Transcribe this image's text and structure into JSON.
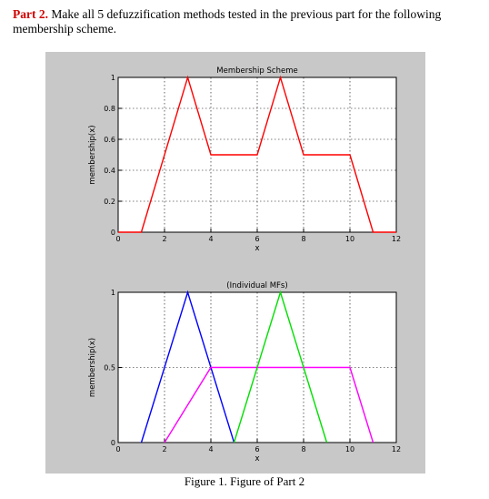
{
  "heading": {
    "part_label": "Part 2.",
    "text": " Make all 5 defuzzification methods tested in the previous part for the following membership scheme."
  },
  "caption": "Figure 1. Figure of Part 2",
  "colors": {
    "figure_bg": "#c8c8c8",
    "red": "#ff0000",
    "blue": "#0000ff",
    "green": "#00e000",
    "magenta": "#ff00ff"
  },
  "chart_data": [
    {
      "type": "line",
      "title": "Membership Scheme",
      "xlabel": "x",
      "ylabel": "membership(x)",
      "xlim": [
        0,
        12
      ],
      "ylim": [
        0,
        1
      ],
      "xticks": [
        "0",
        "2",
        "4",
        "6",
        "8",
        "10",
        "12"
      ],
      "yticks": [
        "0",
        "0.2",
        "0.4",
        "0.6",
        "0.8",
        "1"
      ],
      "grid": true,
      "series": [
        {
          "color": "#ff0000",
          "x": [
            0,
            1,
            3,
            4,
            6,
            7,
            8,
            10,
            11,
            12
          ],
          "y": [
            0,
            0,
            1,
            0.5,
            0.5,
            1,
            0.5,
            0.5,
            0,
            0
          ]
        }
      ]
    },
    {
      "type": "line",
      "title": "(Individual MFs)",
      "xlabel": "x",
      "ylabel": "membership(x)",
      "xlim": [
        0,
        12
      ],
      "ylim": [
        0,
        1
      ],
      "xticks": [
        "0",
        "2",
        "4",
        "6",
        "8",
        "10",
        "12"
      ],
      "yticks": [
        "0",
        "0.5",
        "1"
      ],
      "grid": true,
      "series": [
        {
          "color": "#0000ff",
          "x": [
            1,
            3,
            5
          ],
          "y": [
            0,
            1,
            0
          ]
        },
        {
          "color": "#ff00ff",
          "x": [
            2,
            4,
            10,
            11
          ],
          "y": [
            0,
            0.5,
            0.5,
            0
          ]
        },
        {
          "color": "#00e000",
          "x": [
            5,
            7,
            9
          ],
          "y": [
            0,
            1,
            0
          ]
        }
      ]
    }
  ]
}
